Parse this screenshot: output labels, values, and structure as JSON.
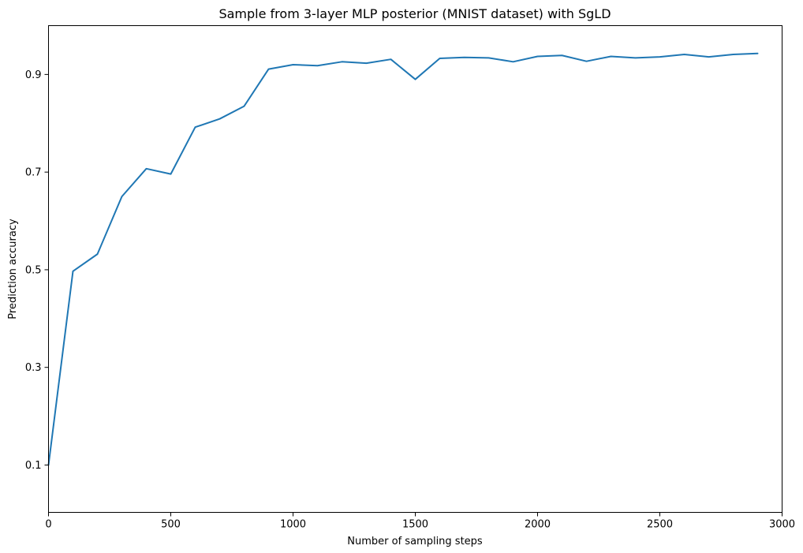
{
  "chart_data": {
    "type": "line",
    "title": "Sample from 3-layer MLP posterior (MNIST dataset) with SgLD",
    "xlabel": "Number of sampling steps",
    "ylabel": "Prediction accuracy",
    "xlim": [
      0,
      3000
    ],
    "ylim": [
      0.003,
      1.0
    ],
    "xticks": [
      0,
      500,
      1000,
      1500,
      2000,
      2500,
      3000
    ],
    "xtick_labels": [
      "0",
      "500",
      "1000",
      "1500",
      "2000",
      "2500",
      "3000"
    ],
    "yticks": [
      0.1,
      0.3,
      0.5,
      0.7,
      0.9
    ],
    "ytick_labels": [
      "0.1",
      "0.3",
      "0.5",
      "0.7",
      "0.9"
    ],
    "grid": false,
    "series": [
      {
        "color": "#1f77b4",
        "x": [
          0,
          100,
          200,
          300,
          400,
          500,
          600,
          700,
          800,
          900,
          1000,
          1100,
          1200,
          1300,
          1400,
          1500,
          1600,
          1700,
          1800,
          1900,
          2000,
          2100,
          2200,
          2300,
          2400,
          2500,
          2600,
          2700,
          2800,
          2900
        ],
        "y": [
          0.1,
          0.497,
          0.532,
          0.65,
          0.707,
          0.696,
          0.792,
          0.809,
          0.835,
          0.911,
          0.92,
          0.918,
          0.926,
          0.923,
          0.931,
          0.89,
          0.933,
          0.935,
          0.934,
          0.926,
          0.937,
          0.939,
          0.927,
          0.937,
          0.934,
          0.936,
          0.941,
          0.936,
          0.941,
          0.943
        ]
      }
    ]
  }
}
